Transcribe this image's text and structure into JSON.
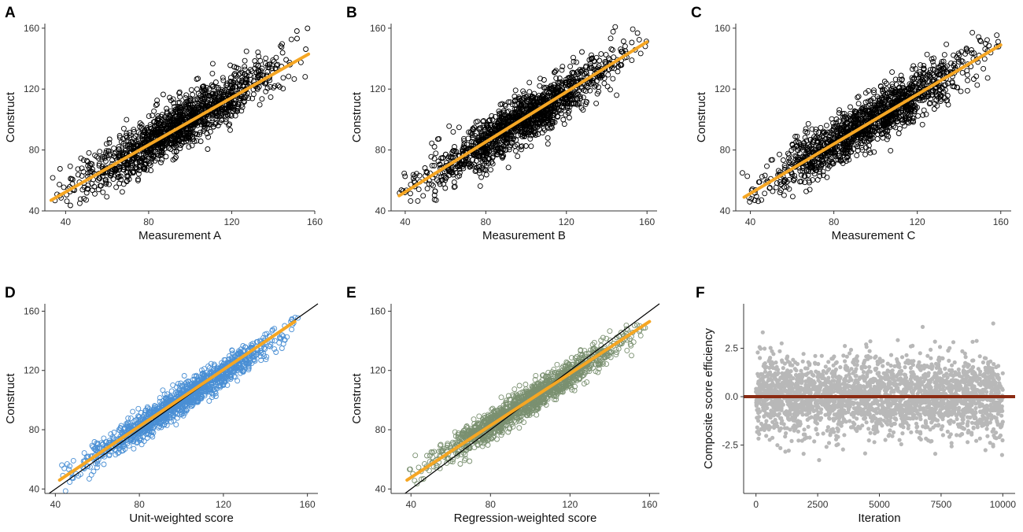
{
  "colors": {
    "fit_line": "#F5A623",
    "identity_line": "#000000",
    "points_default": "#000000",
    "points_unit": "#4A8FD4",
    "points_regression": "#7A9070",
    "points_iteration": "#B8B8B8",
    "zero_line": "#8B2A12"
  },
  "chart_data": [
    {
      "letter": "A",
      "type": "scatter",
      "xlabel": "Measurement A",
      "ylabel": "Construct",
      "xlim": [
        30,
        160
      ],
      "ylim": [
        40,
        163
      ],
      "xticks": [
        40,
        80,
        120,
        160
      ],
      "yticks": [
        40,
        80,
        120,
        160
      ],
      "tick_labels_x": [
        "40",
        "80",
        "120",
        "160"
      ],
      "tick_labels_y": [
        "40",
        "80",
        "120",
        "160"
      ],
      "point_style": "open-circle",
      "point_color_key": "points_default",
      "cloud": {
        "x_range": [
          33,
          157
        ],
        "slope": 0.78,
        "intercept": 22,
        "spread": 8.5,
        "n": 1400
      },
      "fit_line": {
        "x": [
          33,
          157
        ],
        "y": [
          47,
          143
        ]
      },
      "identity_line": false
    },
    {
      "letter": "B",
      "type": "scatter",
      "xlabel": "Measurement B",
      "ylabel": "Construct",
      "xlim": [
        33,
        165
      ],
      "ylim": [
        40,
        163
      ],
      "xticks": [
        40,
        80,
        120,
        160
      ],
      "yticks": [
        40,
        80,
        120,
        160
      ],
      "tick_labels_x": [
        "40",
        "80",
        "120",
        "160"
      ],
      "tick_labels_y": [
        "40",
        "80",
        "120",
        "160"
      ],
      "point_style": "open-circle",
      "point_color_key": "points_default",
      "cloud": {
        "x_range": [
          36,
          160
        ],
        "slope": 0.8,
        "intercept": 21,
        "spread": 8.0,
        "n": 1400
      },
      "fit_line": {
        "x": [
          37,
          160
        ],
        "y": [
          50,
          151
        ]
      },
      "identity_line": false
    },
    {
      "letter": "C",
      "type": "scatter",
      "xlabel": "Measurement C",
      "ylabel": "Construct",
      "xlim": [
        33,
        165
      ],
      "ylim": [
        40,
        163
      ],
      "xticks": [
        40,
        80,
        120,
        160
      ],
      "yticks": [
        40,
        80,
        120,
        160
      ],
      "tick_labels_x": [
        "40",
        "80",
        "120",
        "160"
      ],
      "tick_labels_y": [
        "40",
        "80",
        "120",
        "160"
      ],
      "point_style": "open-circle",
      "point_color_key": "points_default",
      "cloud": {
        "x_range": [
          36,
          160
        ],
        "slope": 0.8,
        "intercept": 21,
        "spread": 8.0,
        "n": 1400
      },
      "fit_line": {
        "x": [
          37,
          160
        ],
        "y": [
          49,
          149
        ]
      },
      "identity_line": false
    },
    {
      "letter": "D",
      "type": "scatter",
      "xlabel": "Unit-weighted score",
      "ylabel": "Construct",
      "xlim": [
        35,
        165
      ],
      "ylim": [
        37,
        165
      ],
      "xticks": [
        40,
        80,
        120,
        160
      ],
      "yticks": [
        40,
        80,
        120,
        160
      ],
      "tick_labels_x": [
        "40",
        "80",
        "120",
        "160"
      ],
      "tick_labels_y": [
        "40",
        "80",
        "120",
        "160"
      ],
      "point_style": "open-circle",
      "point_color_key": "points_unit",
      "cloud": {
        "x_range": [
          42,
          156
        ],
        "slope": 0.92,
        "intercept": 8,
        "spread": 4.8,
        "n": 1400
      },
      "fit_line": {
        "x": [
          42,
          154
        ],
        "y": [
          46,
          153
        ]
      },
      "identity_line": true
    },
    {
      "letter": "E",
      "type": "scatter",
      "xlabel": "Regression-weighted score",
      "ylabel": "Construct",
      "xlim": [
        30,
        165
      ],
      "ylim": [
        37,
        165
      ],
      "xticks": [
        40,
        80,
        120,
        160
      ],
      "yticks": [
        40,
        80,
        120,
        160
      ],
      "tick_labels_x": [
        "40",
        "80",
        "120",
        "160"
      ],
      "tick_labels_y": [
        "40",
        "80",
        "120",
        "160"
      ],
      "point_style": "open-circle",
      "point_color_key": "points_regression",
      "cloud": {
        "x_range": [
          38,
          160
        ],
        "slope": 0.85,
        "intercept": 15,
        "spread": 4.8,
        "n": 1400
      },
      "fit_line": {
        "x": [
          38,
          160
        ],
        "y": [
          46,
          153
        ]
      },
      "identity_line": true
    },
    {
      "letter": "F",
      "type": "scatter",
      "xlabel": "Iteration",
      "ylabel": "Composite score efficiency",
      "xlim": [
        -500,
        10500
      ],
      "ylim": [
        -5.0,
        4.8
      ],
      "xticks": [
        0,
        2500,
        5000,
        7500,
        10000
      ],
      "yticks": [
        -2.5,
        0.0,
        2.5
      ],
      "tick_labels_x": [
        "0",
        "2500",
        "5000",
        "7500",
        "10000"
      ],
      "tick_labels_y": [
        "-2.5",
        "0.0",
        "2.5"
      ],
      "point_style": "filled-circle",
      "point_color_key": "points_iteration",
      "cloud": {
        "x_range": [
          0,
          10000
        ],
        "mean": 0,
        "sd": 1.0,
        "n": 2600
      },
      "hline": 0,
      "identity_line": false
    }
  ]
}
